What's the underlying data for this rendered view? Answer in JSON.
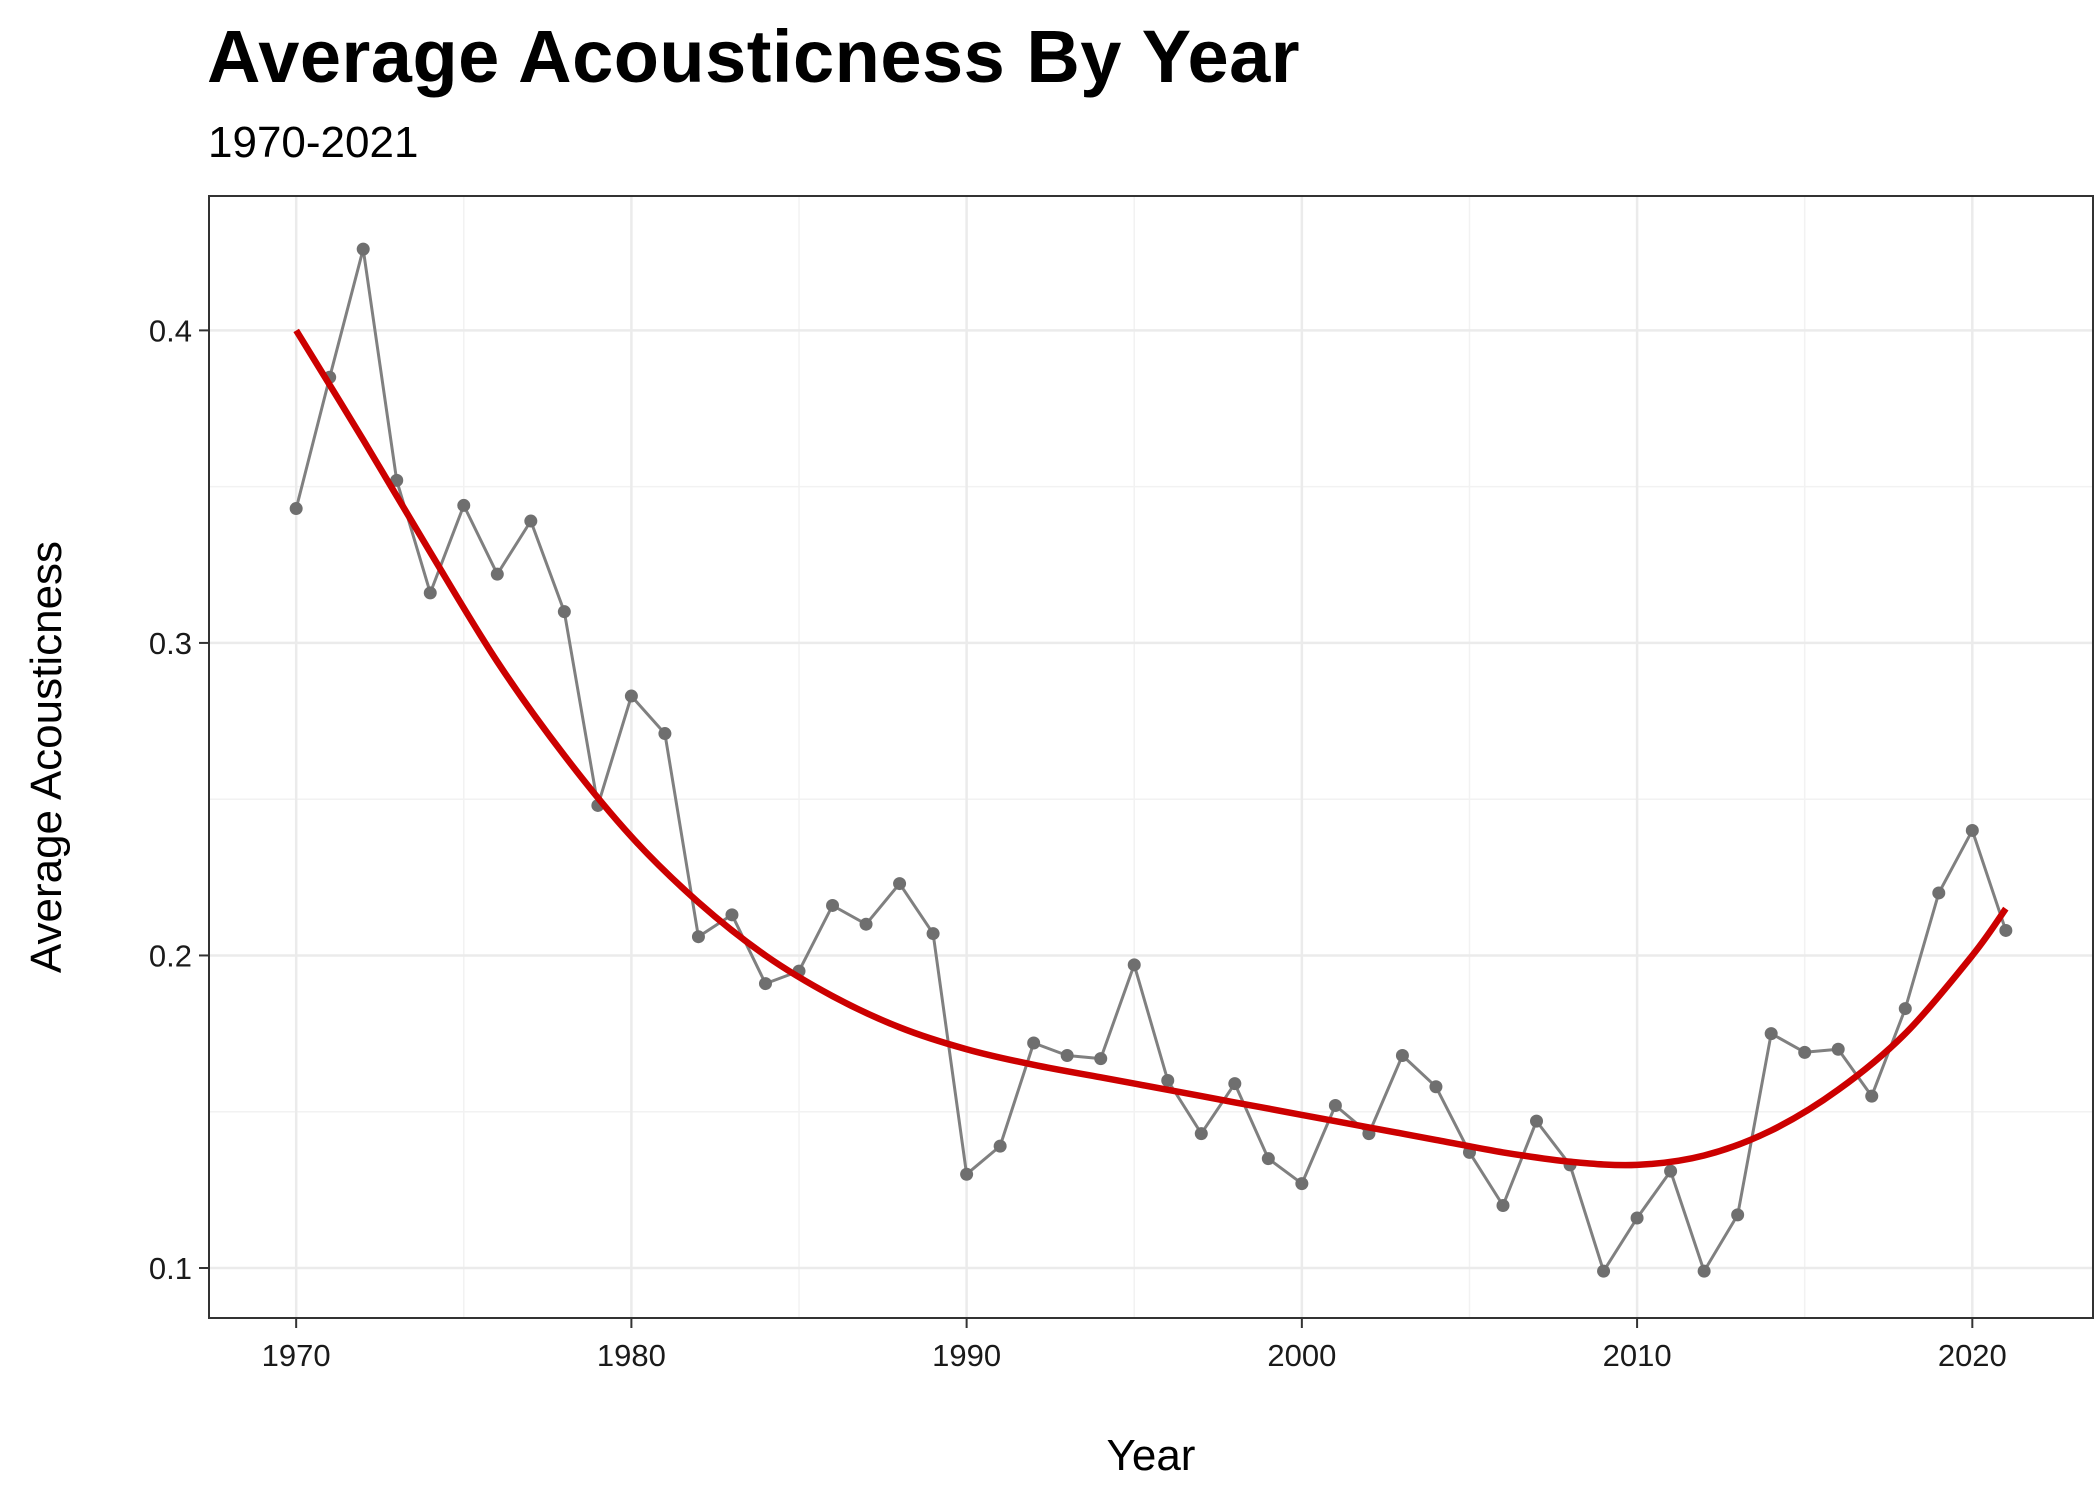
{
  "chart_data": {
    "type": "line",
    "title": "Average Acousticness By Year",
    "subtitle": "1970-2021",
    "xlabel": "Year",
    "ylabel": "Average Acousticness",
    "xlim": [
      1967.4,
      2023.6
    ],
    "ylim": [
      0.084,
      0.443
    ],
    "x_ticks": [
      1970,
      1980,
      1990,
      2000,
      2010,
      2020
    ],
    "x_tick_labels": [
      "1970",
      "1980",
      "1990",
      "2000",
      "2010",
      "2020"
    ],
    "y_ticks": [
      0.1,
      0.2,
      0.3,
      0.4
    ],
    "y_tick_labels": [
      "0.1",
      "0.2",
      "0.3",
      "0.4"
    ],
    "grid": true,
    "legend": "none",
    "series": [
      {
        "kind": "line+points",
        "color": "#808080",
        "x": [
          1970,
          1971,
          1972,
          1973,
          1974,
          1975,
          1976,
          1977,
          1978,
          1979,
          1980,
          1981,
          1982,
          1983,
          1984,
          1985,
          1986,
          1987,
          1988,
          1989,
          1990,
          1991,
          1992,
          1993,
          1994,
          1995,
          1996,
          1997,
          1998,
          1999,
          2000,
          2001,
          2002,
          2003,
          2004,
          2005,
          2006,
          2007,
          2008,
          2009,
          2010,
          2011,
          2012,
          2013,
          2014,
          2015,
          2016,
          2017,
          2018,
          2019,
          2020,
          2021
        ],
        "values": [
          0.343,
          0.385,
          0.426,
          0.352,
          0.316,
          0.344,
          0.322,
          0.339,
          0.31,
          0.248,
          0.283,
          0.271,
          0.206,
          0.213,
          0.191,
          0.195,
          0.216,
          0.21,
          0.223,
          0.207,
          0.13,
          0.139,
          0.172,
          0.168,
          0.167,
          0.197,
          0.16,
          0.143,
          0.159,
          0.135,
          0.127,
          0.152,
          0.143,
          0.168,
          0.158,
          0.137,
          0.12,
          0.147,
          0.133,
          0.099,
          0.116,
          0.131,
          0.099,
          0.117,
          0.175,
          0.169,
          0.17,
          0.155,
          0.183,
          0.22,
          0.24,
          0.208
        ]
      },
      {
        "kind": "smooth",
        "color": "#cc0000",
        "x": [
          1970,
          1972,
          1974,
          1976,
          1978,
          1980,
          1982,
          1984,
          1986,
          1988,
          1990,
          1992,
          1994,
          1996,
          1998,
          2000,
          2002,
          2004,
          2006,
          2008,
          2010,
          2012,
          2014,
          2016,
          2018,
          2020,
          2021
        ],
        "values": [
          0.4,
          0.365,
          0.329,
          0.294,
          0.264,
          0.238,
          0.217,
          0.2,
          0.187,
          0.177,
          0.17,
          0.165,
          0.161,
          0.157,
          0.153,
          0.149,
          0.145,
          0.141,
          0.137,
          0.134,
          0.133,
          0.136,
          0.144,
          0.157,
          0.175,
          0.2,
          0.215
        ]
      }
    ]
  }
}
